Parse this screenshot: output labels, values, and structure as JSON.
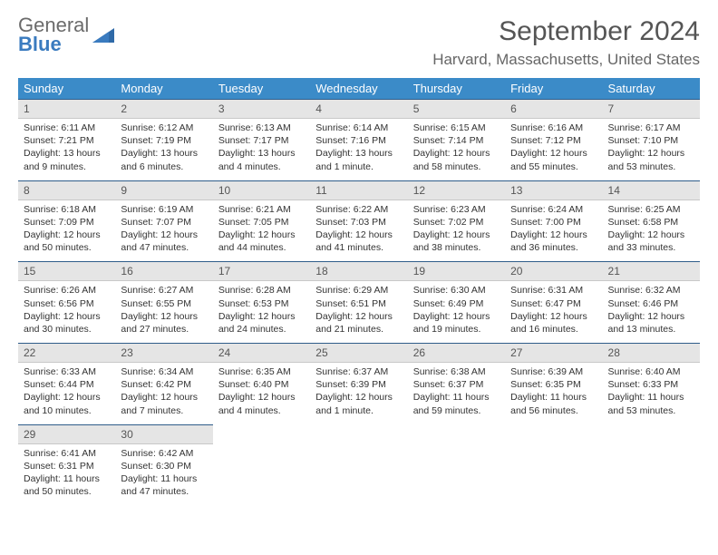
{
  "logo": {
    "top": "General",
    "bottom": "Blue"
  },
  "title": "September 2024",
  "location": "Harvard, Massachusetts, United States",
  "colors": {
    "header_bg": "#3b8bc8",
    "header_fg": "#ffffff",
    "daynum_bg": "#e5e5e5",
    "daynum_border_top": "#2f5d8a",
    "logo_accent": "#3a7bbf"
  },
  "weekdays": [
    "Sunday",
    "Monday",
    "Tuesday",
    "Wednesday",
    "Thursday",
    "Friday",
    "Saturday"
  ],
  "weeks": [
    [
      {
        "n": "1",
        "sr": "Sunrise: 6:11 AM",
        "ss": "Sunset: 7:21 PM",
        "dl": "Daylight: 13 hours and 9 minutes."
      },
      {
        "n": "2",
        "sr": "Sunrise: 6:12 AM",
        "ss": "Sunset: 7:19 PM",
        "dl": "Daylight: 13 hours and 6 minutes."
      },
      {
        "n": "3",
        "sr": "Sunrise: 6:13 AM",
        "ss": "Sunset: 7:17 PM",
        "dl": "Daylight: 13 hours and 4 minutes."
      },
      {
        "n": "4",
        "sr": "Sunrise: 6:14 AM",
        "ss": "Sunset: 7:16 PM",
        "dl": "Daylight: 13 hours and 1 minute."
      },
      {
        "n": "5",
        "sr": "Sunrise: 6:15 AM",
        "ss": "Sunset: 7:14 PM",
        "dl": "Daylight: 12 hours and 58 minutes."
      },
      {
        "n": "6",
        "sr": "Sunrise: 6:16 AM",
        "ss": "Sunset: 7:12 PM",
        "dl": "Daylight: 12 hours and 55 minutes."
      },
      {
        "n": "7",
        "sr": "Sunrise: 6:17 AM",
        "ss": "Sunset: 7:10 PM",
        "dl": "Daylight: 12 hours and 53 minutes."
      }
    ],
    [
      {
        "n": "8",
        "sr": "Sunrise: 6:18 AM",
        "ss": "Sunset: 7:09 PM",
        "dl": "Daylight: 12 hours and 50 minutes."
      },
      {
        "n": "9",
        "sr": "Sunrise: 6:19 AM",
        "ss": "Sunset: 7:07 PM",
        "dl": "Daylight: 12 hours and 47 minutes."
      },
      {
        "n": "10",
        "sr": "Sunrise: 6:21 AM",
        "ss": "Sunset: 7:05 PM",
        "dl": "Daylight: 12 hours and 44 minutes."
      },
      {
        "n": "11",
        "sr": "Sunrise: 6:22 AM",
        "ss": "Sunset: 7:03 PM",
        "dl": "Daylight: 12 hours and 41 minutes."
      },
      {
        "n": "12",
        "sr": "Sunrise: 6:23 AM",
        "ss": "Sunset: 7:02 PM",
        "dl": "Daylight: 12 hours and 38 minutes."
      },
      {
        "n": "13",
        "sr": "Sunrise: 6:24 AM",
        "ss": "Sunset: 7:00 PM",
        "dl": "Daylight: 12 hours and 36 minutes."
      },
      {
        "n": "14",
        "sr": "Sunrise: 6:25 AM",
        "ss": "Sunset: 6:58 PM",
        "dl": "Daylight: 12 hours and 33 minutes."
      }
    ],
    [
      {
        "n": "15",
        "sr": "Sunrise: 6:26 AM",
        "ss": "Sunset: 6:56 PM",
        "dl": "Daylight: 12 hours and 30 minutes."
      },
      {
        "n": "16",
        "sr": "Sunrise: 6:27 AM",
        "ss": "Sunset: 6:55 PM",
        "dl": "Daylight: 12 hours and 27 minutes."
      },
      {
        "n": "17",
        "sr": "Sunrise: 6:28 AM",
        "ss": "Sunset: 6:53 PM",
        "dl": "Daylight: 12 hours and 24 minutes."
      },
      {
        "n": "18",
        "sr": "Sunrise: 6:29 AM",
        "ss": "Sunset: 6:51 PM",
        "dl": "Daylight: 12 hours and 21 minutes."
      },
      {
        "n": "19",
        "sr": "Sunrise: 6:30 AM",
        "ss": "Sunset: 6:49 PM",
        "dl": "Daylight: 12 hours and 19 minutes."
      },
      {
        "n": "20",
        "sr": "Sunrise: 6:31 AM",
        "ss": "Sunset: 6:47 PM",
        "dl": "Daylight: 12 hours and 16 minutes."
      },
      {
        "n": "21",
        "sr": "Sunrise: 6:32 AM",
        "ss": "Sunset: 6:46 PM",
        "dl": "Daylight: 12 hours and 13 minutes."
      }
    ],
    [
      {
        "n": "22",
        "sr": "Sunrise: 6:33 AM",
        "ss": "Sunset: 6:44 PM",
        "dl": "Daylight: 12 hours and 10 minutes."
      },
      {
        "n": "23",
        "sr": "Sunrise: 6:34 AM",
        "ss": "Sunset: 6:42 PM",
        "dl": "Daylight: 12 hours and 7 minutes."
      },
      {
        "n": "24",
        "sr": "Sunrise: 6:35 AM",
        "ss": "Sunset: 6:40 PM",
        "dl": "Daylight: 12 hours and 4 minutes."
      },
      {
        "n": "25",
        "sr": "Sunrise: 6:37 AM",
        "ss": "Sunset: 6:39 PM",
        "dl": "Daylight: 12 hours and 1 minute."
      },
      {
        "n": "26",
        "sr": "Sunrise: 6:38 AM",
        "ss": "Sunset: 6:37 PM",
        "dl": "Daylight: 11 hours and 59 minutes."
      },
      {
        "n": "27",
        "sr": "Sunrise: 6:39 AM",
        "ss": "Sunset: 6:35 PM",
        "dl": "Daylight: 11 hours and 56 minutes."
      },
      {
        "n": "28",
        "sr": "Sunrise: 6:40 AM",
        "ss": "Sunset: 6:33 PM",
        "dl": "Daylight: 11 hours and 53 minutes."
      }
    ],
    [
      {
        "n": "29",
        "sr": "Sunrise: 6:41 AM",
        "ss": "Sunset: 6:31 PM",
        "dl": "Daylight: 11 hours and 50 minutes."
      },
      {
        "n": "30",
        "sr": "Sunrise: 6:42 AM",
        "ss": "Sunset: 6:30 PM",
        "dl": "Daylight: 11 hours and 47 minutes."
      },
      null,
      null,
      null,
      null,
      null
    ]
  ]
}
